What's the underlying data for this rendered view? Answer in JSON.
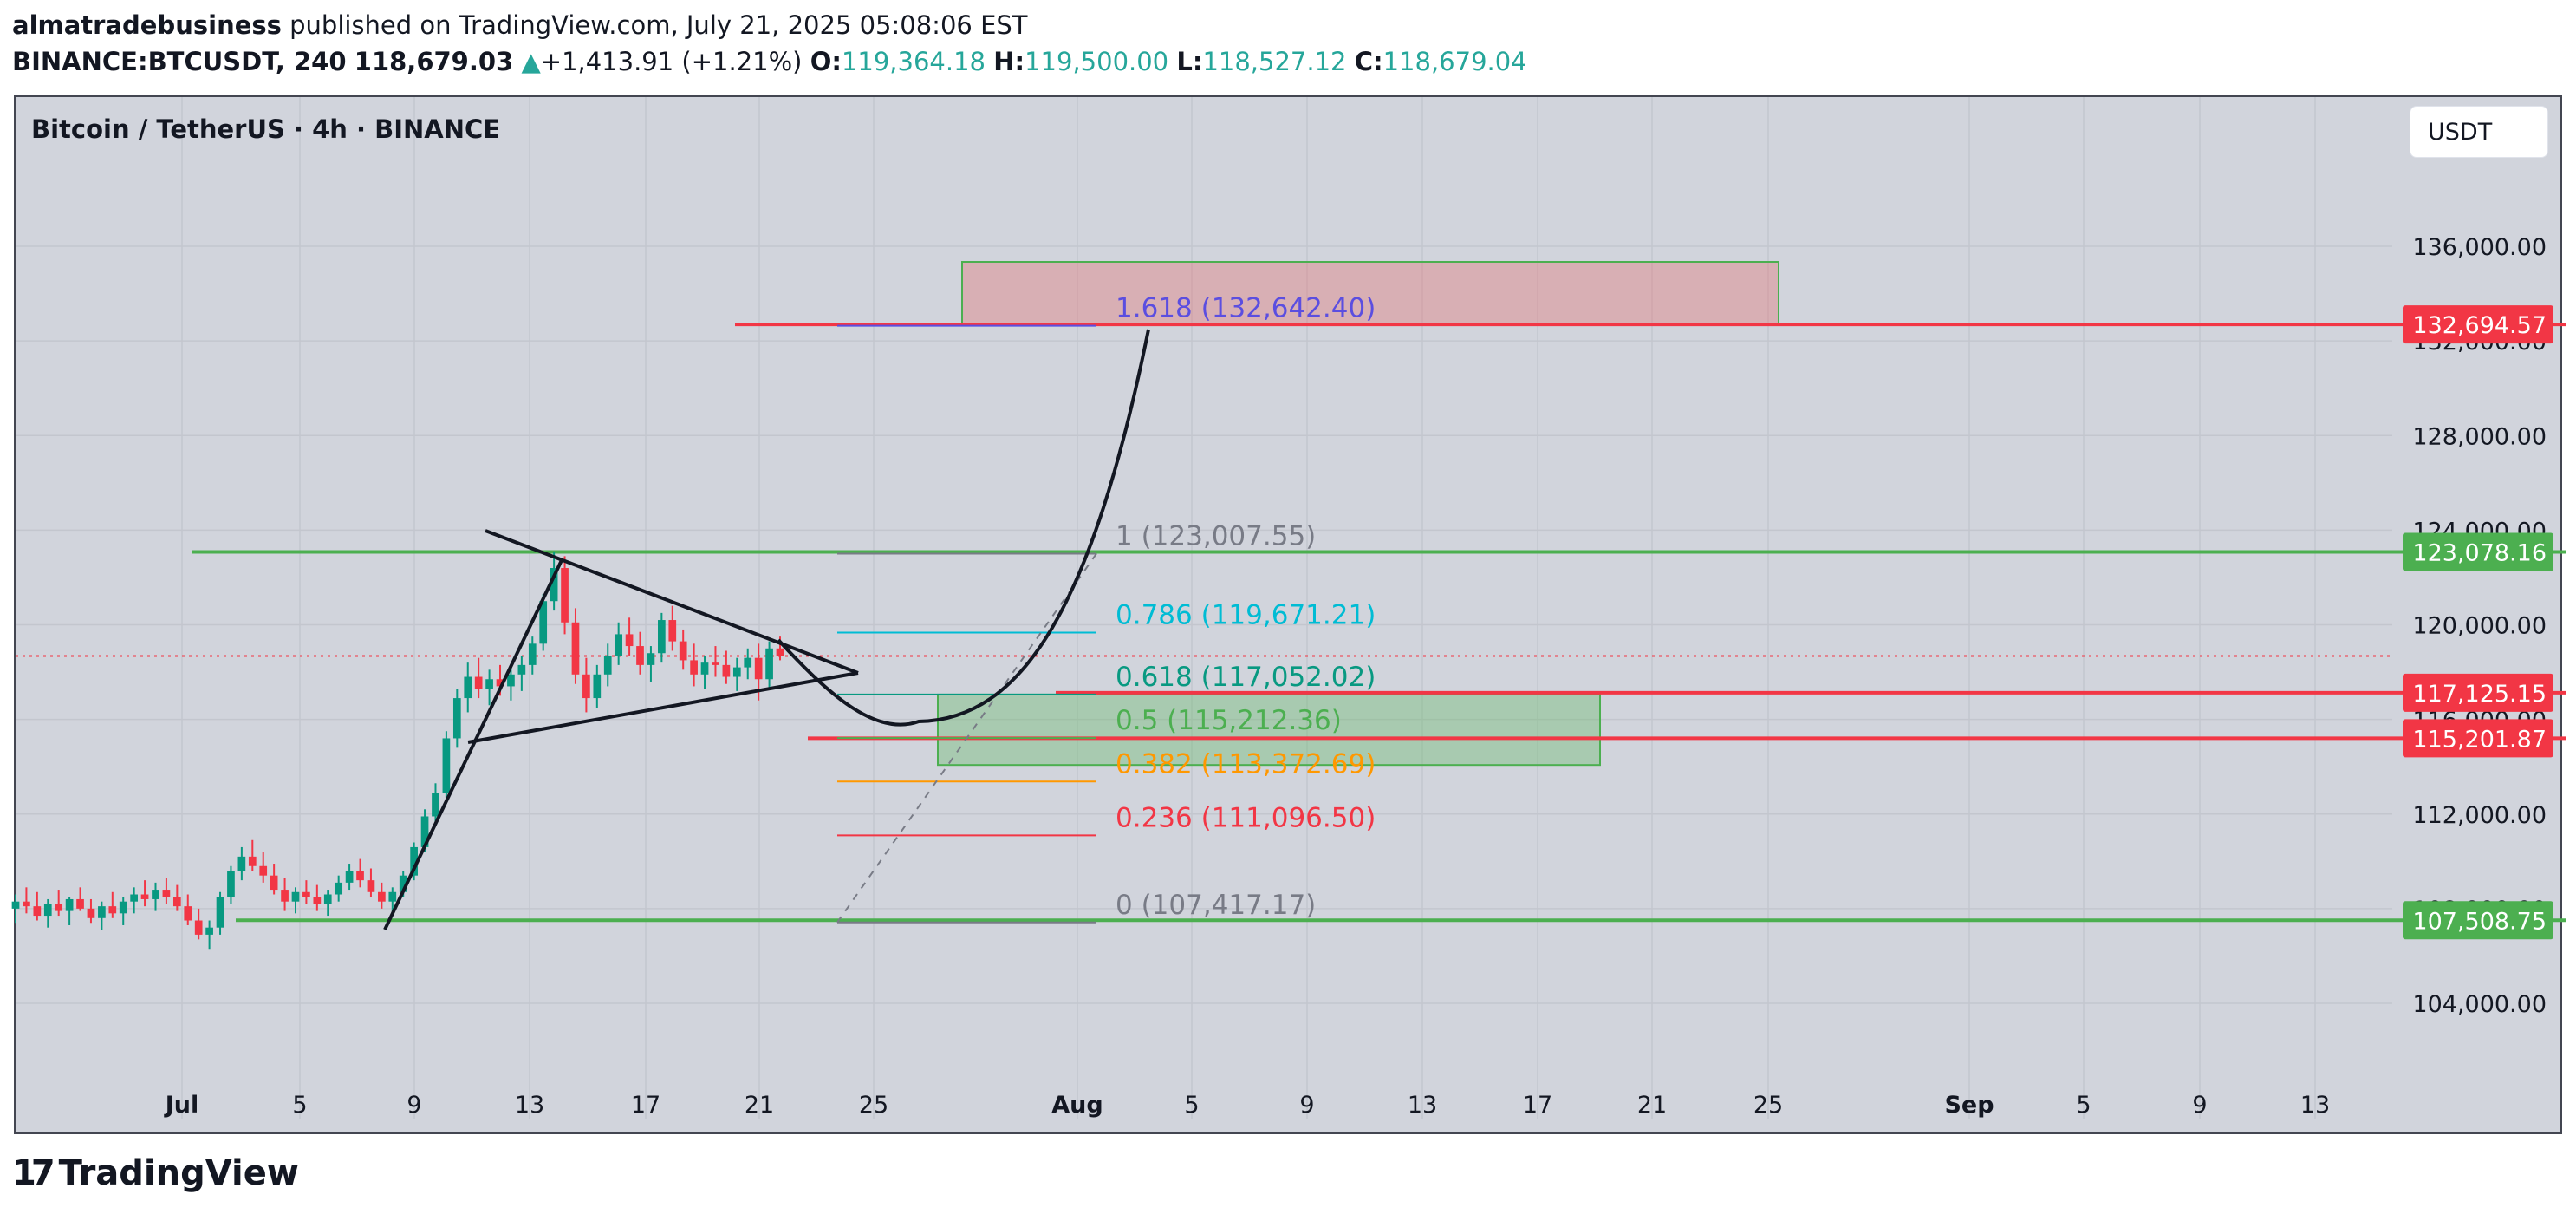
{
  "header": {
    "author": "almatradebusiness",
    "published_text": "published on TradingView.com, July 21, 2025 05:08:06 EST",
    "symbol": "BINANCE:BTCUSDT, 240",
    "last": "118,679.03",
    "change": "+1,413.91 (+1.21%)",
    "o_label": "O:",
    "o": "119,364.18",
    "h_label": "H:",
    "h": "119,500.00",
    "l_label": "L:",
    "l": "118,527.12",
    "c_label": "C:",
    "c": "118,679.04",
    "up_arrow": "▲"
  },
  "chart_title": "Bitcoin / TetherUS · 4h · BINANCE",
  "currency": "USDT",
  "logo": {
    "mark": "17",
    "text": "TradingView"
  },
  "chart_data": {
    "type": "candlestick",
    "x_ticks": [
      "Jul",
      "5",
      "9",
      "13",
      "17",
      "21",
      "25",
      "Aug",
      "5",
      "9",
      "13",
      "17",
      "21",
      "25",
      "Sep",
      "5",
      "9",
      "13"
    ],
    "y_ticks": [
      "104,000.00",
      "108,000.00",
      "112,000.00",
      "116,000.00",
      "120,000.00",
      "124,000.00",
      "128,000.00",
      "132,000.00",
      "136,000.00"
    ],
    "ylim": [
      101000,
      138500
    ],
    "current_price": 118679.03,
    "price_tags": [
      {
        "value": 132694.57,
        "label": "132,694.57",
        "color": "#f23645"
      },
      {
        "value": 123078.16,
        "label": "123,078.16",
        "color": "#4caf50"
      },
      {
        "value": 117125.15,
        "label": "117,125.15",
        "color": "#f23645"
      },
      {
        "value": 115201.87,
        "label": "115,201.87",
        "color": "#f23645"
      },
      {
        "value": 107508.75,
        "label": "107,508.75",
        "color": "#4caf50"
      }
    ],
    "fib_levels": [
      {
        "ratio": "1.618",
        "price": 132642.4,
        "label": "1.618 (132,642.40)",
        "color": "#5b4ee0"
      },
      {
        "ratio": "1",
        "price": 123007.55,
        "label": "1 (123,007.55)",
        "color": "#787b86"
      },
      {
        "ratio": "0.786",
        "price": 119671.21,
        "label": "0.786 (119,671.21)",
        "color": "#00bcd4"
      },
      {
        "ratio": "0.618",
        "price": 117052.02,
        "label": "0.618 (117,052.02)",
        "color": "#089981"
      },
      {
        "ratio": "0.5",
        "price": 115212.36,
        "label": "0.5 (115,212.36)",
        "color": "#4caf50"
      },
      {
        "ratio": "0.382",
        "price": 113372.69,
        "label": "0.382 (113,372.69)",
        "color": "#ff9800"
      },
      {
        "ratio": "0.236",
        "price": 111096.5,
        "label": "0.236 (111,096.50)",
        "color": "#f23645"
      },
      {
        "ratio": "0",
        "price": 107417.17,
        "label": "0 (107,417.17)",
        "color": "#787b86"
      }
    ],
    "candles": [
      [
        108000,
        108600,
        107400,
        108300
      ],
      [
        108300,
        108900,
        107800,
        108100
      ],
      [
        108100,
        108700,
        107500,
        107700
      ],
      [
        107700,
        108400,
        107200,
        108200
      ],
      [
        108200,
        108800,
        107700,
        107900
      ],
      [
        107900,
        108500,
        107300,
        108400
      ],
      [
        108400,
        108900,
        107900,
        108000
      ],
      [
        108000,
        108400,
        107400,
        107600
      ],
      [
        107600,
        108300,
        107100,
        108100
      ],
      [
        108100,
        108700,
        107600,
        107800
      ],
      [
        107800,
        108500,
        107300,
        108300
      ],
      [
        108300,
        108900,
        107800,
        108600
      ],
      [
        108600,
        109200,
        108100,
        108400
      ],
      [
        108400,
        109100,
        107900,
        108800
      ],
      [
        108800,
        109300,
        108200,
        108500
      ],
      [
        108500,
        109000,
        107900,
        108100
      ],
      [
        108100,
        108600,
        107300,
        107500
      ],
      [
        107500,
        108000,
        106700,
        106900
      ],
      [
        106900,
        107500,
        106300,
        107200
      ],
      [
        107200,
        108700,
        106900,
        108500
      ],
      [
        108500,
        109800,
        108200,
        109600
      ],
      [
        109600,
        110600,
        109200,
        110200
      ],
      [
        110200,
        110900,
        109600,
        109800
      ],
      [
        109800,
        110400,
        109100,
        109400
      ],
      [
        109400,
        109900,
        108600,
        108800
      ],
      [
        108800,
        109300,
        107900,
        108300
      ],
      [
        108300,
        108900,
        107800,
        108700
      ],
      [
        108700,
        109200,
        108200,
        108500
      ],
      [
        108500,
        109000,
        107900,
        108200
      ],
      [
        108200,
        108800,
        107700,
        108600
      ],
      [
        108600,
        109400,
        108300,
        109100
      ],
      [
        109100,
        109900,
        108800,
        109600
      ],
      [
        109600,
        110100,
        108900,
        109200
      ],
      [
        109200,
        109700,
        108500,
        108700
      ],
      [
        108700,
        109100,
        108000,
        108300
      ],
      [
        108300,
        108900,
        107800,
        108700
      ],
      [
        108700,
        109600,
        108500,
        109400
      ],
      [
        109400,
        110800,
        109200,
        110600
      ],
      [
        110600,
        112200,
        110400,
        111900
      ],
      [
        111900,
        113300,
        111500,
        112900
      ],
      [
        112900,
        115500,
        112700,
        115200
      ],
      [
        115200,
        117300,
        114800,
        116900
      ],
      [
        116900,
        118400,
        116300,
        117800
      ],
      [
        117800,
        118600,
        116900,
        117300
      ],
      [
        117300,
        118100,
        116600,
        117700
      ],
      [
        117700,
        118300,
        117000,
        117400
      ],
      [
        117400,
        118200,
        116800,
        117900
      ],
      [
        117900,
        118700,
        117200,
        118300
      ],
      [
        118300,
        119500,
        117900,
        119200
      ],
      [
        119200,
        121300,
        118900,
        121000
      ],
      [
        121000,
        123100,
        120600,
        122400
      ],
      [
        122400,
        122900,
        119600,
        120100
      ],
      [
        120100,
        120700,
        117500,
        117900
      ],
      [
        117900,
        118600,
        116300,
        116900
      ],
      [
        116900,
        118300,
        116500,
        117900
      ],
      [
        117900,
        119200,
        117400,
        118700
      ],
      [
        118700,
        120100,
        118300,
        119600
      ],
      [
        119600,
        120300,
        118700,
        119100
      ],
      [
        119100,
        119700,
        117900,
        118300
      ],
      [
        118300,
        119100,
        117600,
        118800
      ],
      [
        118800,
        120500,
        118400,
        120200
      ],
      [
        120200,
        120800,
        118900,
        119300
      ],
      [
        119300,
        119800,
        118100,
        118500
      ],
      [
        118500,
        119200,
        117400,
        117900
      ],
      [
        117900,
        118700,
        117300,
        118400
      ],
      [
        118400,
        119100,
        117800,
        118300
      ],
      [
        118300,
        118900,
        117500,
        117800
      ],
      [
        117800,
        118600,
        117200,
        118200
      ],
      [
        118200,
        119000,
        117700,
        118600
      ],
      [
        118600,
        119200,
        116800,
        117700
      ],
      [
        117700,
        119300,
        117300,
        119000
      ],
      [
        119000,
        119500,
        118500,
        118679
      ]
    ]
  }
}
